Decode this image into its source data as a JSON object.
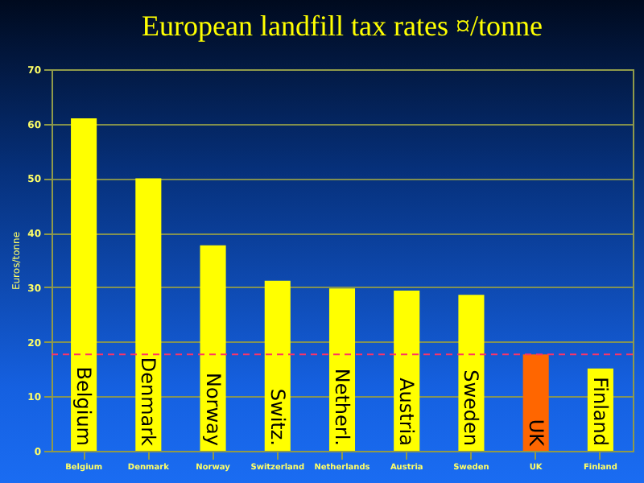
{
  "chart_data": {
    "type": "bar",
    "title": "European landfill tax rates  ¤/tonne",
    "ylabel": "Euros/tonne",
    "categories": [
      "Belgium",
      "Denmark",
      "Norway",
      "Switzerland",
      "Netherlands",
      "Austria",
      "Sweden",
      "UK",
      "Finland"
    ],
    "values": [
      61,
      50,
      37.7,
      31.2,
      29.8,
      29.4,
      28.6,
      17.7,
      15.1
    ],
    "colors": [
      "#ffff00",
      "#ffff00",
      "#ffff00",
      "#ffff00",
      "#ffff00",
      "#ffff00",
      "#ffff00",
      "#ff6600",
      "#ffff00"
    ],
    "ylim": [
      0,
      70
    ],
    "yticks": [
      0,
      10,
      20,
      30,
      40,
      50,
      60,
      70
    ],
    "grid": "y",
    "ref_lines": [
      {
        "axis": "y",
        "value": 17.7,
        "color": "#ff3366",
        "line_style": "dashed"
      }
    ],
    "annotations": [
      "Belgium",
      "Denmark",
      "Norway",
      "Switz.",
      "Netherl.",
      "Austria",
      "Sweden",
      "UK",
      "Finland"
    ]
  }
}
